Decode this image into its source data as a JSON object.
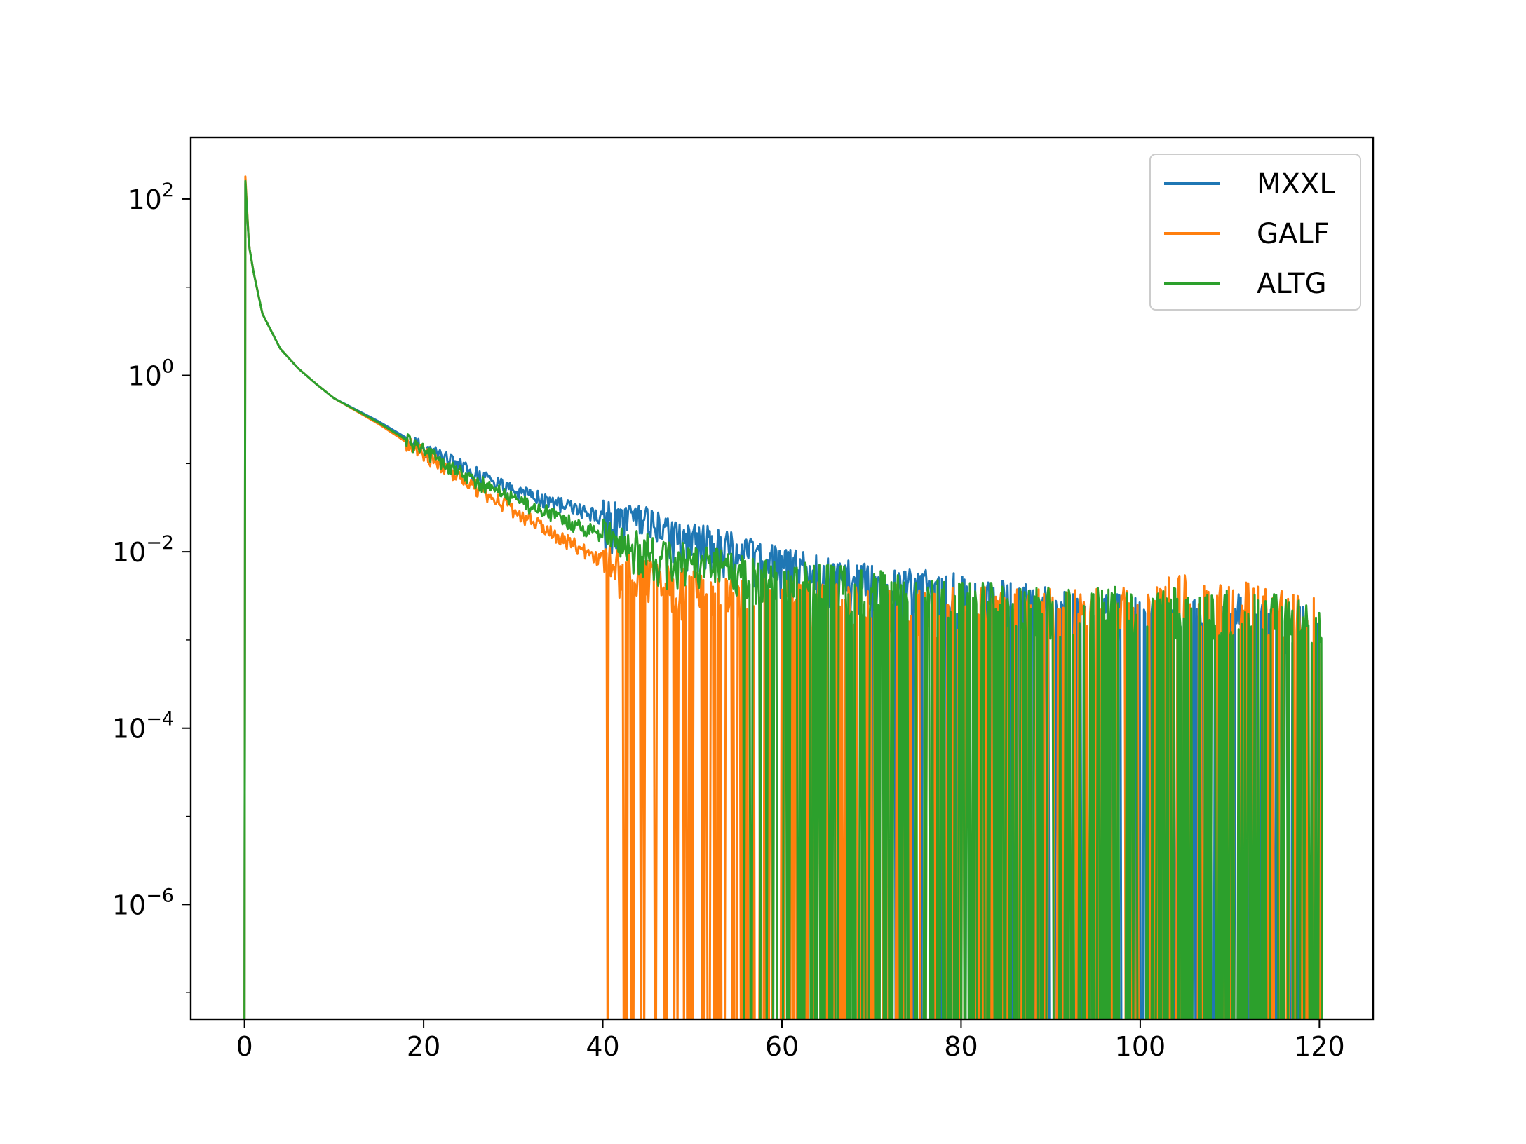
{
  "chart_data": {
    "type": "line",
    "title": "",
    "xlabel": "",
    "ylabel": "",
    "xscale": "linear",
    "yscale": "log",
    "xlim": [
      -6,
      126
    ],
    "ylim": [
      5e-08,
      500
    ],
    "xticks": [
      0,
      20,
      40,
      60,
      80,
      100,
      120
    ],
    "xtick_labels": [
      "0",
      "20",
      "40",
      "60",
      "80",
      "100",
      "120"
    ],
    "yticks": [
      1e-06,
      0.0001,
      0.01,
      1,
      100
    ],
    "ytick_labels": [
      {
        "base": "10",
        "exp": "−6"
      },
      {
        "base": "10",
        "exp": "−4"
      },
      {
        "base": "10",
        "exp": "−2"
      },
      {
        "base": "10",
        "exp": "0"
      },
      {
        "base": "10",
        "exp": "2"
      }
    ],
    "grid": false,
    "legend": {
      "position": "top-right"
    },
    "series": [
      {
        "name": "MXXL",
        "color": "#1f77b4",
        "envelope": [
          [
            0.1,
            150
          ],
          [
            0.5,
            30
          ],
          [
            1,
            15
          ],
          [
            2,
            5
          ],
          [
            4,
            2
          ],
          [
            6,
            1.2
          ],
          [
            8,
            0.8
          ],
          [
            10,
            0.55
          ],
          [
            15,
            0.3
          ],
          [
            20,
            0.15
          ],
          [
            25,
            0.085
          ],
          [
            30,
            0.05
          ],
          [
            35,
            0.035
          ],
          [
            40,
            0.025
          ],
          [
            45,
            0.02
          ],
          [
            50,
            0.014
          ],
          [
            55,
            0.01
          ],
          [
            60,
            0.007
          ],
          [
            65,
            0.0055
          ],
          [
            70,
            0.0045
          ],
          [
            75,
            0.004
          ],
          [
            80,
            0.0035
          ],
          [
            85,
            0.003
          ],
          [
            90,
            0.0025
          ],
          [
            95,
            0.0022
          ],
          [
            100,
            0.002
          ],
          [
            105,
            0.0022
          ],
          [
            110,
            0.0022
          ],
          [
            115,
            0.0018
          ],
          [
            120,
            0.0015
          ]
        ],
        "zero_start": 70
      },
      {
        "name": "GALF",
        "color": "#ff7f0e",
        "envelope": [
          [
            0.1,
            180
          ],
          [
            0.5,
            30
          ],
          [
            1,
            15
          ],
          [
            2,
            5
          ],
          [
            4,
            2
          ],
          [
            6,
            1.2
          ],
          [
            8,
            0.8
          ],
          [
            10,
            0.55
          ],
          [
            15,
            0.28
          ],
          [
            20,
            0.13
          ],
          [
            25,
            0.06
          ],
          [
            30,
            0.03
          ],
          [
            35,
            0.015
          ],
          [
            40,
            0.008
          ],
          [
            45,
            0.005
          ],
          [
            50,
            0.004
          ],
          [
            55,
            0.0035
          ],
          [
            60,
            0.0033
          ],
          [
            65,
            0.003
          ],
          [
            70,
            0.0028
          ],
          [
            75,
            0.0026
          ],
          [
            80,
            0.0025
          ],
          [
            85,
            0.0025
          ],
          [
            90,
            0.0025
          ],
          [
            95,
            0.0025
          ],
          [
            100,
            0.0028
          ],
          [
            105,
            0.0035
          ],
          [
            110,
            0.003
          ],
          [
            115,
            0.0025
          ],
          [
            120,
            0.0018
          ]
        ],
        "zero_start": 39.5
      },
      {
        "name": "ALTG",
        "color": "#2ca02c",
        "envelope": [
          [
            0.1,
            160
          ],
          [
            0.5,
            30
          ],
          [
            1,
            15
          ],
          [
            2,
            5
          ],
          [
            4,
            2
          ],
          [
            6,
            1.2
          ],
          [
            8,
            0.8
          ],
          [
            10,
            0.55
          ],
          [
            15,
            0.29
          ],
          [
            20,
            0.14
          ],
          [
            25,
            0.07
          ],
          [
            30,
            0.04
          ],
          [
            35,
            0.025
          ],
          [
            40,
            0.015
          ],
          [
            45,
            0.01
          ],
          [
            50,
            0.008
          ],
          [
            55,
            0.006
          ],
          [
            60,
            0.005
          ],
          [
            65,
            0.0045
          ],
          [
            70,
            0.004
          ],
          [
            75,
            0.0035
          ],
          [
            80,
            0.003
          ],
          [
            85,
            0.0028
          ],
          [
            90,
            0.0025
          ],
          [
            95,
            0.0025
          ],
          [
            100,
            0.0025
          ],
          [
            105,
            0.0025
          ],
          [
            110,
            0.0025
          ],
          [
            115,
            0.0022
          ],
          [
            120,
            0.0015
          ]
        ],
        "zero_start": 55
      }
    ]
  }
}
